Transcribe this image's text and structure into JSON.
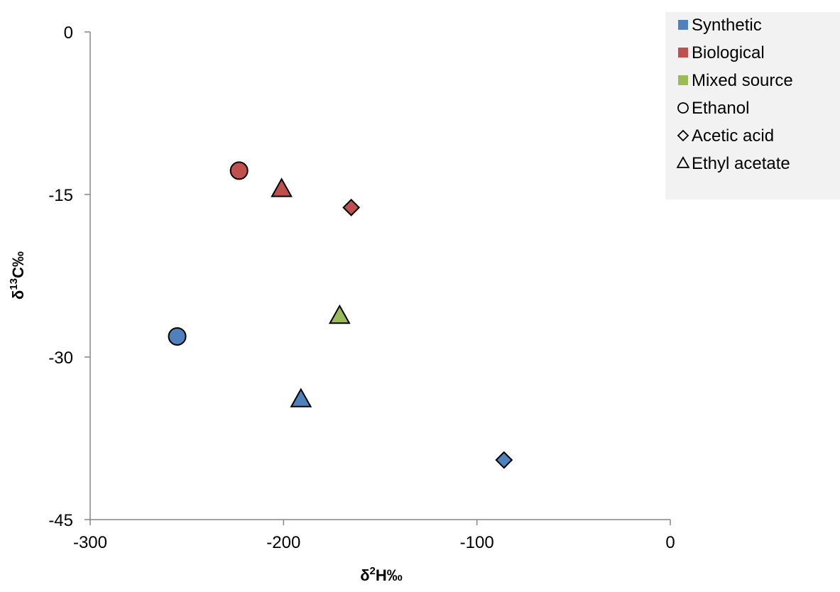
{
  "chart_data": {
    "type": "scatter",
    "xlabel_main": "δ",
    "xlabel_sup": "2",
    "xlabel_rest": "H‰",
    "ylabel_main": "δ",
    "ylabel_sup": "13",
    "ylabel_rest": "C‰",
    "xlim": [
      -300,
      0
    ],
    "ylim": [
      -45,
      0
    ],
    "x_ticks": [
      -300,
      -200,
      -100,
      0
    ],
    "y_ticks": [
      0,
      -15,
      -30,
      -45
    ],
    "x_tick_labels": [
      "-300",
      "-200",
      "-100",
      "0"
    ],
    "y_tick_labels": [
      "0",
      "-15",
      "-30",
      "-45"
    ],
    "grid": false,
    "legend_position": "top-right",
    "colors": {
      "Synthetic": "#4f81bd",
      "Biological": "#c0504d",
      "Mixed source": "#9bbb59"
    },
    "legend": [
      {
        "label": "Synthetic",
        "kind": "color",
        "color": "#4f81bd"
      },
      {
        "label": "Biological",
        "kind": "color",
        "color": "#c0504d"
      },
      {
        "label": "Mixed source",
        "kind": "color",
        "color": "#9bbb59"
      },
      {
        "label": "Ethanol",
        "kind": "shape",
        "shape": "circle"
      },
      {
        "label": "Acetic acid",
        "kind": "shape",
        "shape": "diamond"
      },
      {
        "label": "Ethyl acetate",
        "kind": "shape",
        "shape": "triangle"
      }
    ],
    "points": [
      {
        "source": "Biological",
        "compound": "Ethanol",
        "shape": "circle",
        "x": -223,
        "y": -12.8
      },
      {
        "source": "Biological",
        "compound": "Ethyl acetate",
        "shape": "triangle",
        "x": -201,
        "y": -14.5
      },
      {
        "source": "Biological",
        "compound": "Acetic acid",
        "shape": "diamond",
        "x": -165,
        "y": -16.2
      },
      {
        "source": "Mixed source",
        "compound": "Ethyl acetate",
        "shape": "triangle",
        "x": -171,
        "y": -26.2
      },
      {
        "source": "Synthetic",
        "compound": "Ethanol",
        "shape": "circle",
        "x": -255,
        "y": -28.1
      },
      {
        "source": "Synthetic",
        "compound": "Ethyl acetate",
        "shape": "triangle",
        "x": -191,
        "y": -33.9
      },
      {
        "source": "Synthetic",
        "compound": "Acetic acid",
        "shape": "diamond",
        "x": -86,
        "y": -39.5
      }
    ]
  }
}
